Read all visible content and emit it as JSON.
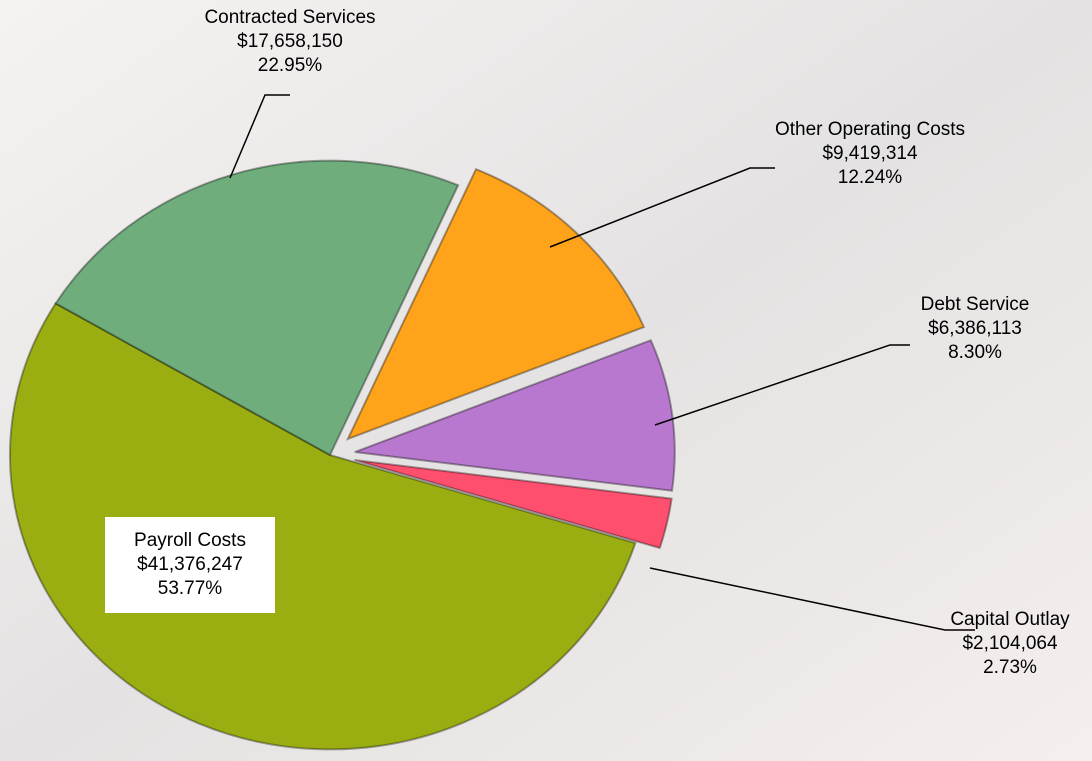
{
  "chart_data": {
    "type": "pie",
    "categories": [
      "Payroll Costs",
      "Contracted Services",
      "Other Operating Costs",
      "Debt Service",
      "Capital Outlay"
    ],
    "values": [
      41376247,
      17658150,
      9419314,
      6386113,
      2104064
    ],
    "value_labels": [
      "$41,376,247",
      "$17,658,150",
      "$9,419,314",
      "$6,386,113",
      "$2,104,064"
    ],
    "percentages": [
      53.77,
      22.95,
      12.24,
      8.3,
      2.73
    ],
    "percentage_labels": [
      "53.77%",
      "22.95%",
      "12.24%",
      "8.30%",
      "2.73%"
    ],
    "colors": [
      "#9aae12",
      "#6fae7c",
      "#ffa31a",
      "#b978cf",
      "#ff4f6e"
    ]
  }
}
